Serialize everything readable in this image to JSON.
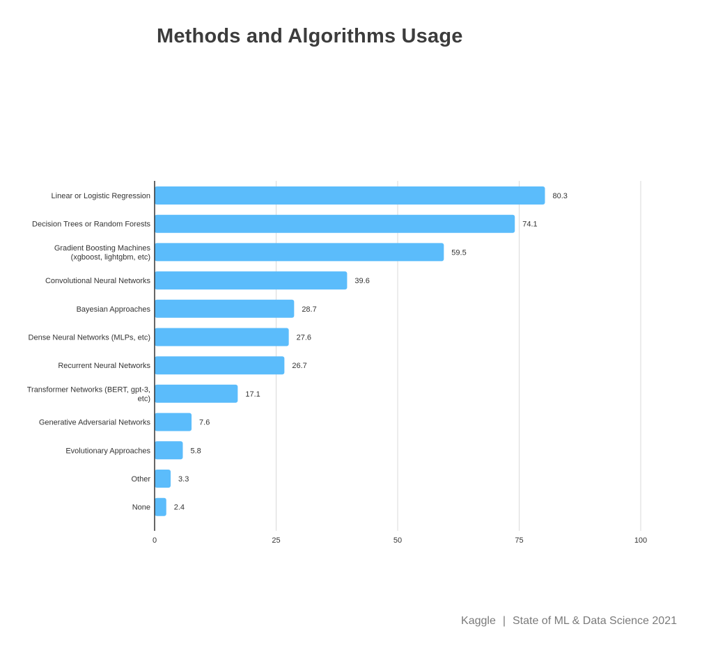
{
  "chart_data": {
    "type": "bar",
    "orientation": "horizontal",
    "title": "Methods and Algorithms Usage",
    "categories": [
      [
        "Linear or Logistic Regression"
      ],
      [
        "Decision Trees or Random Forests"
      ],
      [
        "Gradient Boosting Machines",
        "(xgboost, lightgbm, etc)"
      ],
      [
        "Convolutional Neural Networks"
      ],
      [
        "Bayesian Approaches"
      ],
      [
        "Dense Neural Networks (MLPs, etc)"
      ],
      [
        "Recurrent Neural Networks"
      ],
      [
        "Transformer Networks (BERT, gpt-3,",
        "etc)"
      ],
      [
        "Generative Adversarial Networks"
      ],
      [
        "Evolutionary Approaches"
      ],
      [
        "Other"
      ],
      [
        "None"
      ]
    ],
    "values": [
      80.3,
      74.1,
      59.5,
      39.6,
      28.7,
      27.6,
      26.7,
      17.1,
      7.6,
      5.8,
      3.3,
      2.4
    ],
    "value_labels": [
      "80.3",
      "74.1",
      "59.5",
      "39.6",
      "28.7",
      "27.6",
      "26.7",
      "17.1",
      "7.6",
      "5.8",
      "3.3",
      "2.4"
    ],
    "xlim": [
      0,
      100
    ],
    "xticks": [
      0,
      25,
      50,
      75,
      100
    ],
    "xtick_labels": [
      "0",
      "25",
      "50",
      "75",
      "100"
    ],
    "grid": true,
    "bar_color": "#5bbcfb",
    "grid_color": "#d9d9d9",
    "axis_color": "#333333"
  },
  "footer": {
    "source": "Kaggle",
    "separator": "|",
    "report": "State of ML & Data Science 2021"
  }
}
